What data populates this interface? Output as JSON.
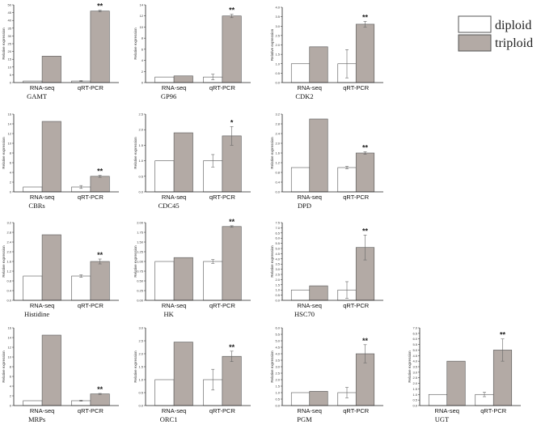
{
  "colors": {
    "diploid": "#ffffff",
    "triploid": "#b3aaa5",
    "stroke": "#555555",
    "axis": "#222222"
  },
  "legend": [
    {
      "name": "diploid",
      "color": "#ffffff"
    },
    {
      "name": "triploid",
      "color": "#b3aaa5"
    }
  ],
  "chart_data": [
    {
      "type": "bar",
      "title": "GAMT",
      "ylabel": "Relative expression",
      "categories": [
        "RNA-seq",
        "qRT-PCR"
      ],
      "series": [
        {
          "name": "diploid",
          "values": [
            1,
            1
          ]
        },
        {
          "name": "triploid",
          "values": [
            17,
            46
          ]
        }
      ],
      "errors": [
        0,
        0.3,
        0,
        0.5
      ],
      "significance": [
        "",
        "**"
      ],
      "ylim": [
        0,
        50
      ],
      "yticks": [
        0,
        5,
        10,
        15,
        20,
        25,
        30,
        35,
        40,
        45,
        50
      ]
    },
    {
      "type": "bar",
      "title": "GP96",
      "ylabel": "Relative expression",
      "categories": [
        "RNA-seq",
        "qRT-PCR"
      ],
      "series": [
        {
          "name": "diploid",
          "values": [
            1,
            1
          ]
        },
        {
          "name": "triploid",
          "values": [
            1.2,
            12
          ]
        }
      ],
      "errors": [
        0,
        0.5,
        0,
        0.3
      ],
      "significance": [
        "",
        "**"
      ],
      "ylim": [
        0,
        14
      ],
      "yticks": [
        0,
        2,
        4,
        6,
        8,
        10,
        12,
        14
      ]
    },
    {
      "type": "bar",
      "title": "CDK2",
      "ylabel": "Relative expression",
      "categories": [
        "RNA-seq",
        "qRT-PCR"
      ],
      "series": [
        {
          "name": "diploid",
          "values": [
            1,
            1
          ]
        },
        {
          "name": "triploid",
          "values": [
            1.9,
            3.1
          ]
        }
      ],
      "errors": [
        0,
        0.75,
        0,
        0.15
      ],
      "significance": [
        "",
        "**"
      ],
      "ylim": [
        0,
        4
      ],
      "yticks": [
        0,
        0.5,
        1.0,
        1.5,
        2.0,
        2.5,
        3.0,
        3.5,
        4.0
      ]
    },
    {
      "type": "bar",
      "title": "CBRs",
      "ylabel": "Relative expression",
      "categories": [
        "RNA-seq",
        "qRT-PCR"
      ],
      "series": [
        {
          "name": "diploid",
          "values": [
            1,
            1
          ]
        },
        {
          "name": "triploid",
          "values": [
            14.5,
            3.2
          ]
        }
      ],
      "errors": [
        0,
        0.3,
        0,
        0.2
      ],
      "significance": [
        "",
        "**"
      ],
      "ylim": [
        0,
        16
      ],
      "yticks": [
        0,
        2,
        4,
        6,
        8,
        10,
        12,
        14,
        16
      ]
    },
    {
      "type": "bar",
      "title": "CDC45",
      "ylabel": "Relative expression",
      "categories": [
        "RNA-seq",
        "qRT-PCR"
      ],
      "series": [
        {
          "name": "diploid",
          "values": [
            1,
            1
          ]
        },
        {
          "name": "triploid",
          "values": [
            1.9,
            1.8
          ]
        }
      ],
      "errors": [
        0,
        0.2,
        0,
        0.3
      ],
      "significance": [
        "",
        "*"
      ],
      "ylim": [
        0,
        2.5
      ],
      "yticks": [
        0,
        0.5,
        1.0,
        1.5,
        2.0,
        2.5
      ]
    },
    {
      "type": "bar",
      "title": "DPD",
      "ylabel": "Relative expression",
      "categories": [
        "RNA-seq",
        "qRT-PCR"
      ],
      "series": [
        {
          "name": "diploid",
          "values": [
            1,
            1
          ]
        },
        {
          "name": "triploid",
          "values": [
            3.0,
            1.6
          ]
        }
      ],
      "errors": [
        0,
        0.05,
        0,
        0.05
      ],
      "significance": [
        "",
        "**"
      ],
      "ylim": [
        0,
        3.2
      ],
      "yticks": [
        0,
        0.4,
        0.8,
        1.2,
        1.6,
        2.0,
        2.4,
        2.8,
        3.2
      ]
    },
    {
      "type": "bar",
      "title": "Histidine",
      "ylabel": "Relative expression",
      "categories": [
        "RNA-seq",
        "qRT-PCR"
      ],
      "series": [
        {
          "name": "diploid",
          "values": [
            1,
            1
          ]
        },
        {
          "name": "triploid",
          "values": [
            2.7,
            1.6
          ]
        }
      ],
      "errors": [
        0,
        0.05,
        0,
        0.1
      ],
      "significance": [
        "",
        "**"
      ],
      "ylim": [
        0,
        3.2
      ],
      "yticks": [
        0,
        0.4,
        0.8,
        1.2,
        1.6,
        2.0,
        2.4,
        2.8,
        3.2
      ]
    },
    {
      "type": "bar",
      "title": "HK",
      "ylabel": "Relative expression",
      "categories": [
        "RNA-seq",
        "qRT-PCR"
      ],
      "series": [
        {
          "name": "diploid",
          "values": [
            1,
            1
          ]
        },
        {
          "name": "triploid",
          "values": [
            1.1,
            1.9
          ]
        }
      ],
      "errors": [
        0,
        0.05,
        0,
        0.02
      ],
      "significance": [
        "",
        "**"
      ],
      "ylim": [
        0,
        2.0
      ],
      "yticks": [
        0,
        0.25,
        0.5,
        0.75,
        1.0,
        1.25,
        1.5,
        1.75,
        2.0
      ]
    },
    {
      "type": "bar",
      "title": "HSC70",
      "ylabel": "Relative expression",
      "categories": [
        "RNA-seq",
        "qRT-PCR"
      ],
      "series": [
        {
          "name": "diploid",
          "values": [
            1,
            1
          ]
        },
        {
          "name": "triploid",
          "values": [
            1.4,
            5.1
          ]
        }
      ],
      "errors": [
        0,
        0.8,
        0,
        1.2
      ],
      "significance": [
        "",
        "**"
      ],
      "ylim": [
        0,
        7.5
      ],
      "yticks": [
        0,
        0.5,
        1.0,
        1.5,
        2.0,
        2.5,
        3.0,
        3.5,
        4.0,
        4.5,
        5.0,
        5.5,
        6.0,
        6.5,
        7.0,
        7.5
      ]
    },
    {
      "type": "bar",
      "title": "MRPs",
      "ylabel": "Relative expression",
      "categories": [
        "RNA-seq",
        "qRT-PCR"
      ],
      "series": [
        {
          "name": "diploid",
          "values": [
            1,
            1
          ]
        },
        {
          "name": "triploid",
          "values": [
            14.5,
            2.4
          ]
        }
      ],
      "errors": [
        0,
        0.1,
        0,
        0.1
      ],
      "significance": [
        "",
        "**"
      ],
      "ylim": [
        0,
        16
      ],
      "yticks": [
        0,
        2,
        4,
        6,
        8,
        10,
        12,
        14,
        16
      ]
    },
    {
      "type": "bar",
      "title": "ORC1",
      "ylabel": "Relative expression",
      "categories": [
        "RNA-seq",
        "qRT-PCR"
      ],
      "series": [
        {
          "name": "diploid",
          "values": [
            1,
            1
          ]
        },
        {
          "name": "triploid",
          "values": [
            2.45,
            1.9
          ]
        }
      ],
      "errors": [
        0,
        0.4,
        0,
        0.2
      ],
      "significance": [
        "",
        "**"
      ],
      "ylim": [
        0,
        3.0
      ],
      "yticks": [
        0,
        0.5,
        1.0,
        1.5,
        2.0,
        2.5,
        3.0
      ]
    },
    {
      "type": "bar",
      "title": "PGM",
      "ylabel": "Relative expression",
      "categories": [
        "RNA-seq",
        "qRT-PCR"
      ],
      "series": [
        {
          "name": "diploid",
          "values": [
            1,
            1
          ]
        },
        {
          "name": "triploid",
          "values": [
            1.1,
            4.0
          ]
        }
      ],
      "errors": [
        0,
        0.4,
        0,
        0.7
      ],
      "significance": [
        "",
        "**"
      ],
      "ylim": [
        0,
        6.0
      ],
      "yticks": [
        0,
        0.5,
        1.0,
        1.5,
        2.0,
        2.5,
        3.0,
        3.5,
        4.0,
        4.5,
        5.0,
        5.5,
        6.0
      ]
    },
    {
      "type": "bar",
      "title": "UGT",
      "ylabel": "Relative expression",
      "categories": [
        "RNA-seq",
        "qRT-PCR"
      ],
      "series": [
        {
          "name": "diploid",
          "values": [
            1,
            1
          ]
        },
        {
          "name": "triploid",
          "values": [
            4.0,
            5.0
          ]
        }
      ],
      "errors": [
        0,
        0.2,
        0,
        1.0
      ],
      "significance": [
        "",
        "**"
      ],
      "ylim": [
        0,
        7.0
      ],
      "yticks": [
        0,
        0.5,
        1.0,
        1.5,
        2.0,
        2.5,
        3.0,
        3.5,
        4.0,
        4.5,
        5.0,
        5.5,
        6.0,
        6.5,
        7.0
      ]
    }
  ]
}
